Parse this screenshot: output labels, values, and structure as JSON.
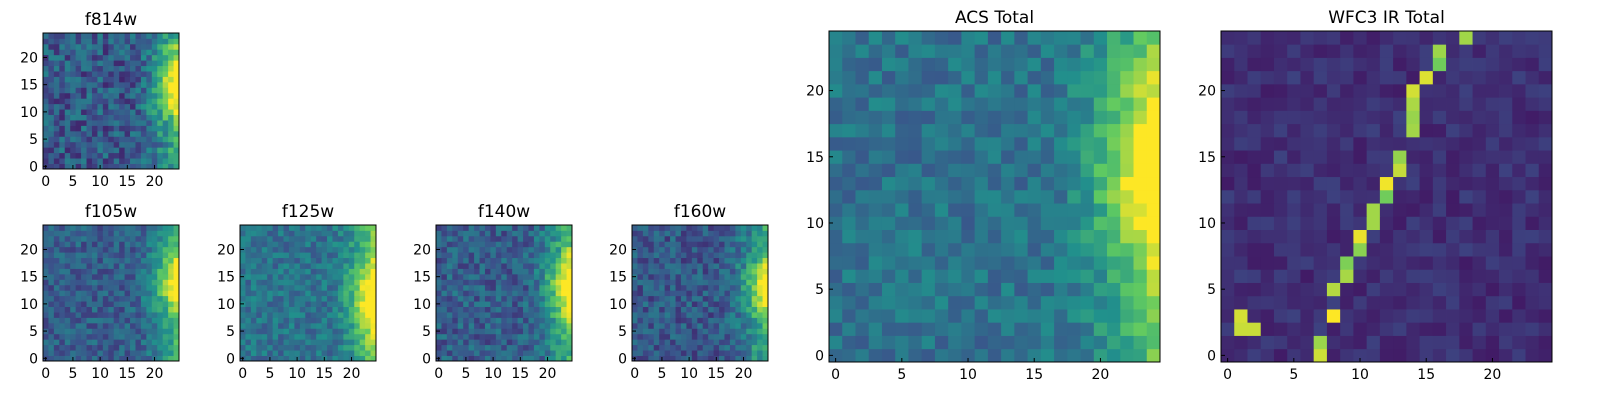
{
  "figure": {
    "colormap": "viridis",
    "palette": [
      "#440154",
      "#3b528b",
      "#21918c",
      "#5ec962",
      "#fde725"
    ]
  },
  "chart_data": [
    {
      "type": "heatmap",
      "title": "f814w",
      "grid_size": 25,
      "xlim": [
        0,
        24
      ],
      "ylim": [
        0,
        24
      ],
      "xticks": [
        "0",
        "5",
        "10",
        "15",
        "20"
      ],
      "yticks": [
        "0",
        "5",
        "10",
        "15",
        "20"
      ],
      "pattern": "edge",
      "peak_row": 15,
      "peak_width": 6,
      "noise": 0.55,
      "base": 0.28,
      "seed": 11
    },
    {
      "type": "heatmap",
      "title": "f105w",
      "grid_size": 25,
      "xlim": [
        0,
        24
      ],
      "ylim": [
        0,
        24
      ],
      "xticks": [
        "0",
        "5",
        "10",
        "15",
        "20"
      ],
      "yticks": [
        "0",
        "5",
        "10",
        "15",
        "20"
      ],
      "pattern": "edge",
      "peak_row": 14,
      "peak_width": 5,
      "noise": 0.4,
      "base": 0.3,
      "seed": 23
    },
    {
      "type": "heatmap",
      "title": "f125w",
      "grid_size": 25,
      "xlim": [
        0,
        24
      ],
      "ylim": [
        0,
        24
      ],
      "xticks": [
        "0",
        "5",
        "10",
        "15",
        "20"
      ],
      "yticks": [
        "0",
        "5",
        "10",
        "15",
        "20"
      ],
      "pattern": "edge",
      "peak_row": 11,
      "peak_width": 7,
      "noise": 0.4,
      "base": 0.38,
      "seed": 37
    },
    {
      "type": "heatmap",
      "title": "f140w",
      "grid_size": 25,
      "xlim": [
        0,
        24
      ],
      "ylim": [
        0,
        24
      ],
      "xticks": [
        "0",
        "5",
        "10",
        "15",
        "20"
      ],
      "yticks": [
        "0",
        "5",
        "10",
        "15",
        "20"
      ],
      "pattern": "edge",
      "peak_row": 13,
      "peak_width": 6,
      "noise": 0.45,
      "base": 0.3,
      "seed": 41
    },
    {
      "type": "heatmap",
      "title": "f160w",
      "grid_size": 25,
      "xlim": [
        0,
        24
      ],
      "ylim": [
        0,
        24
      ],
      "xticks": [
        "0",
        "5",
        "10",
        "15",
        "20"
      ],
      "yticks": [
        "0",
        "5",
        "10",
        "15",
        "20"
      ],
      "pattern": "edge",
      "peak_row": 13,
      "peak_width": 5,
      "noise": 0.45,
      "base": 0.28,
      "seed": 53
    },
    {
      "type": "heatmap",
      "title": "ACS Total",
      "grid_size": 25,
      "xlim": [
        0,
        24
      ],
      "ylim": [
        0,
        24
      ],
      "xticks": [
        "0",
        "5",
        "10",
        "15",
        "20"
      ],
      "yticks": [
        "0",
        "5",
        "10",
        "15",
        "20"
      ],
      "pattern": "edge",
      "peak_row": 14,
      "peak_width": 7,
      "noise": 0.35,
      "base": 0.38,
      "seed": 67
    },
    {
      "type": "heatmap",
      "title": "WFC3 IR Total",
      "grid_size": 25,
      "xlim": [
        0,
        24
      ],
      "ylim": [
        0,
        24
      ],
      "xticks": [
        "0",
        "5",
        "10",
        "15",
        "20"
      ],
      "yticks": [
        "0",
        "5",
        "10",
        "15",
        "20"
      ],
      "pattern": "diagonal",
      "noise": 0.12,
      "base": 0.08,
      "seed": 79,
      "bright_cells": [
        [
          7,
          0
        ],
        [
          7,
          1
        ],
        [
          8,
          3
        ],
        [
          8,
          5
        ],
        [
          9,
          6
        ],
        [
          9,
          7
        ],
        [
          10,
          8
        ],
        [
          10,
          9
        ],
        [
          11,
          10
        ],
        [
          11,
          11
        ],
        [
          12,
          12
        ],
        [
          12,
          13
        ],
        [
          13,
          14
        ],
        [
          13,
          15
        ],
        [
          14,
          17
        ],
        [
          14,
          18
        ],
        [
          14,
          19
        ],
        [
          14,
          20
        ],
        [
          15,
          21
        ],
        [
          16,
          22
        ],
        [
          16,
          23
        ],
        [
          18,
          24
        ],
        [
          1,
          2
        ],
        [
          1,
          3
        ],
        [
          2,
          2
        ]
      ]
    }
  ]
}
